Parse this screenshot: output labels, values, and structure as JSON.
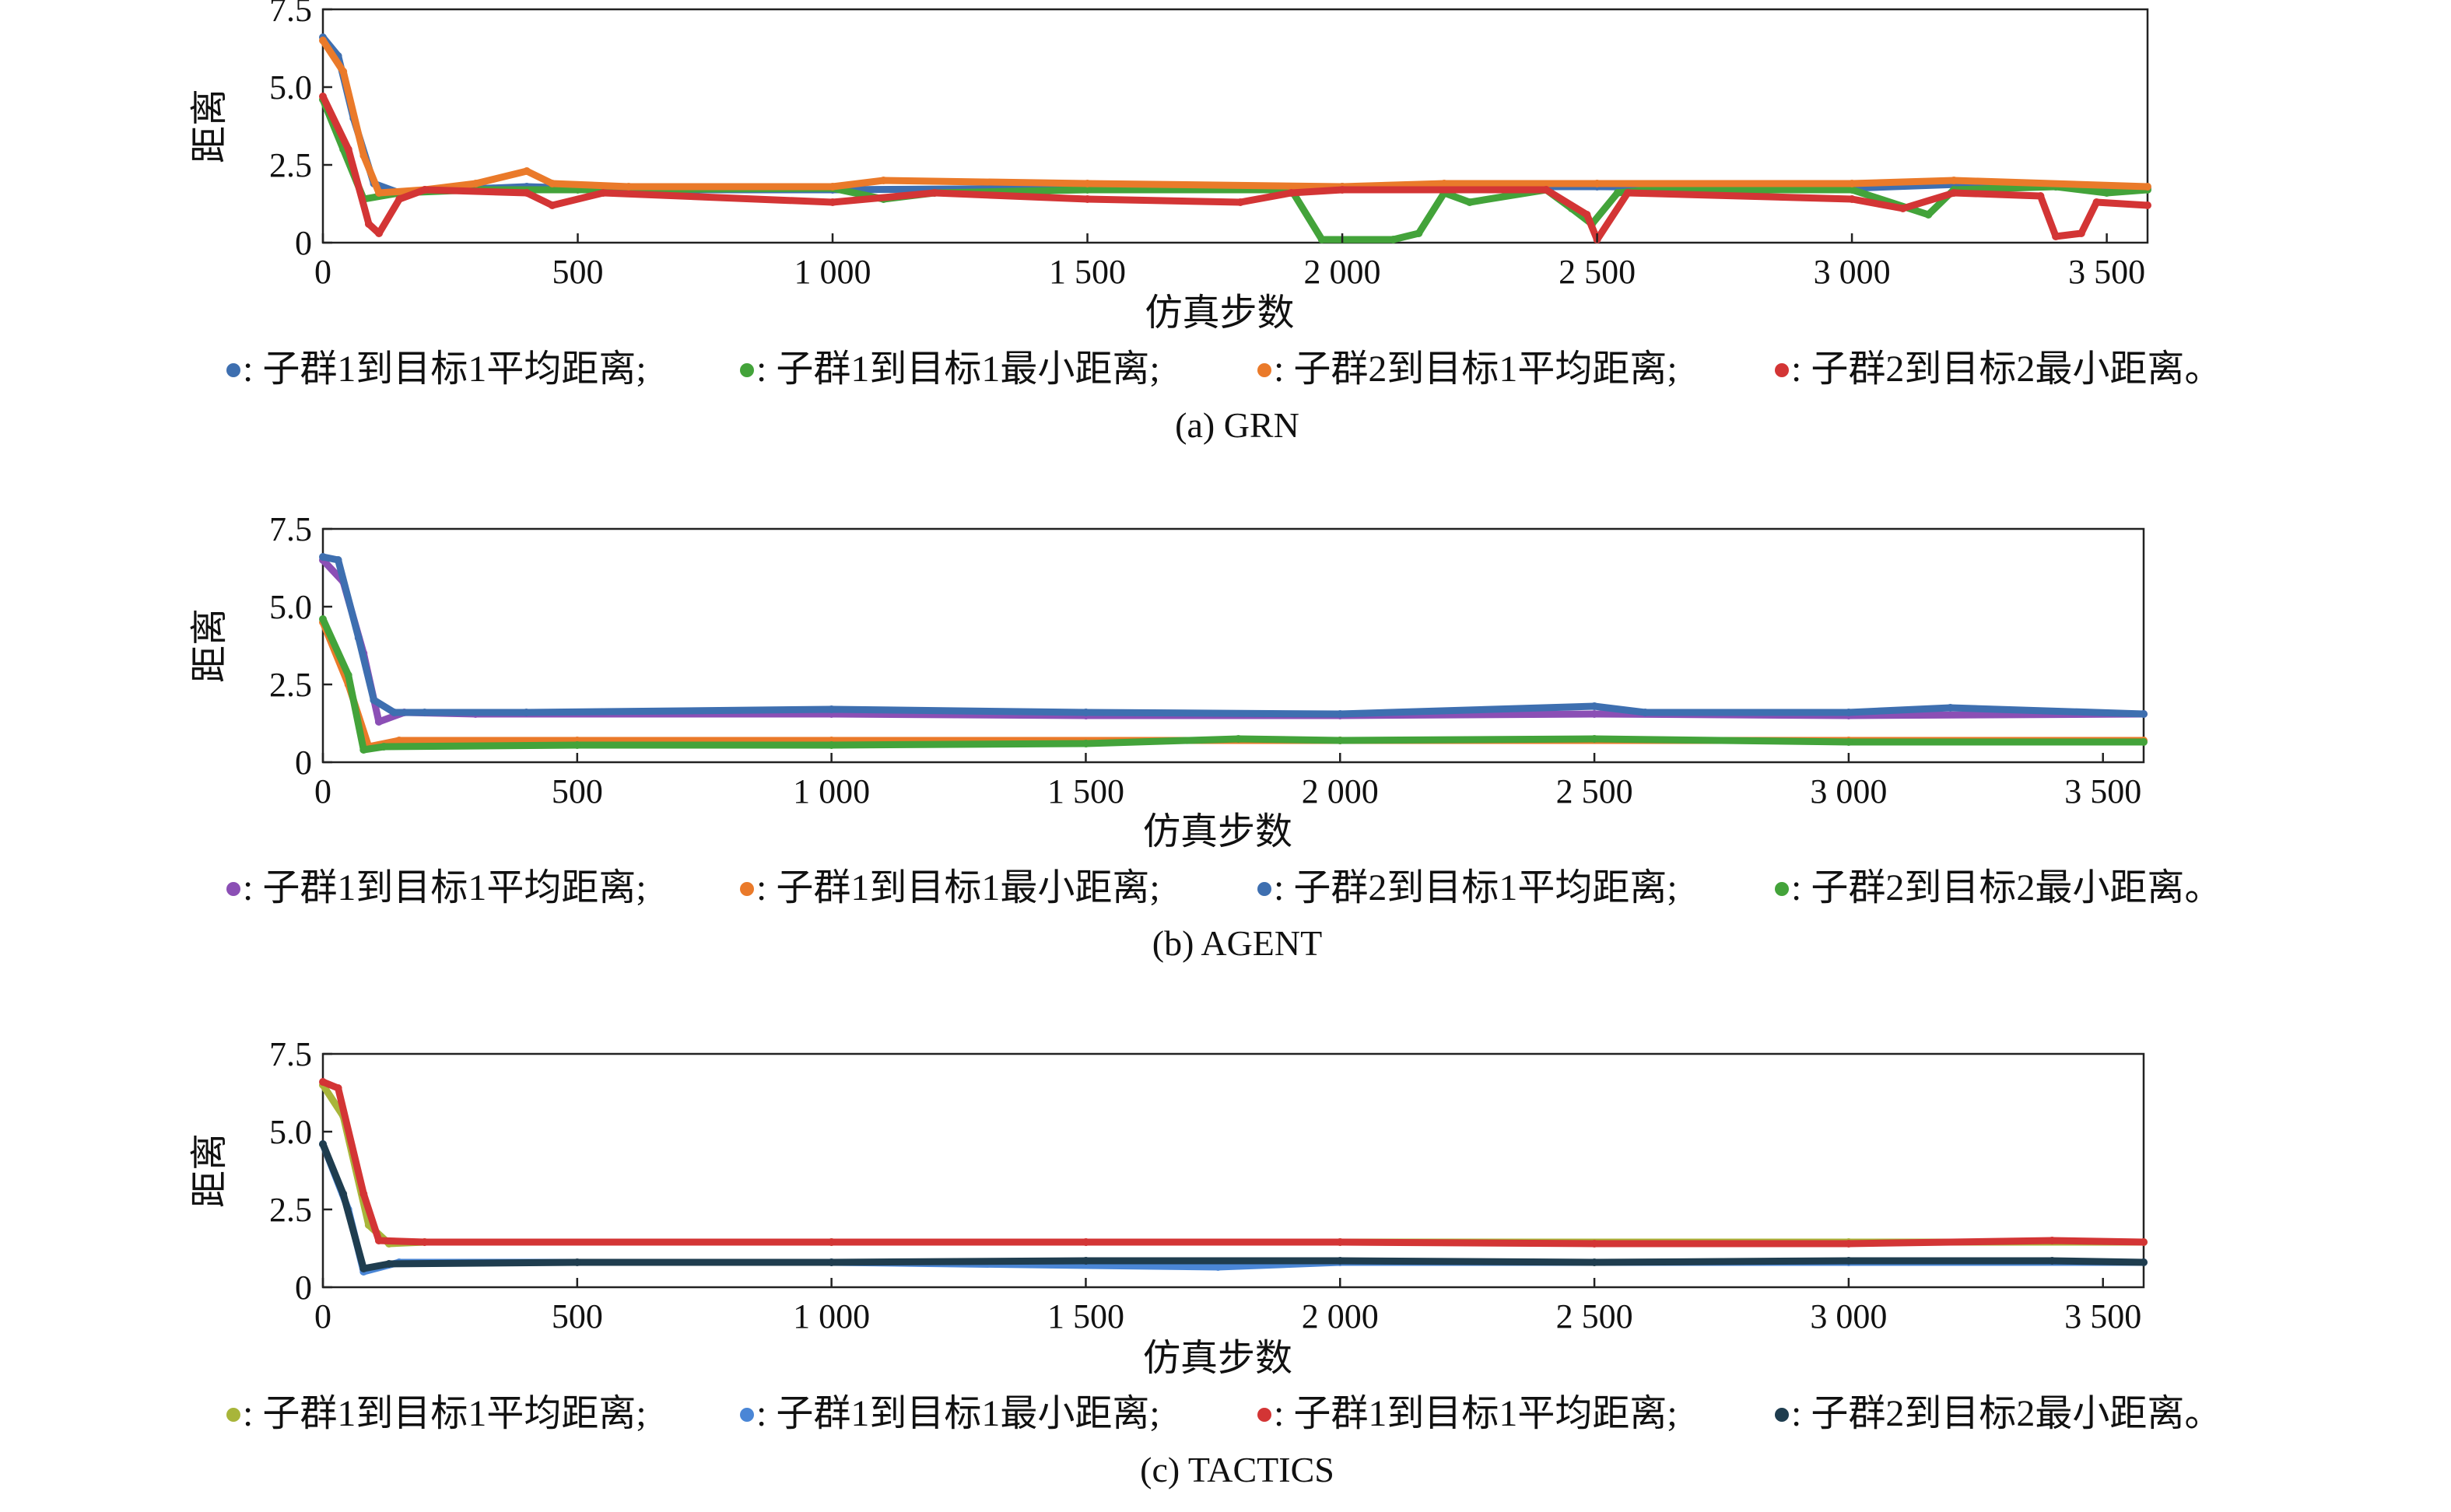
{
  "chart_data": [
    {
      "type": "line",
      "caption": "(a) GRN",
      "xlabel": "仿真步数",
      "ylabel": "距离",
      "xlim": [
        0,
        3580
      ],
      "ylim": [
        0,
        7.5
      ],
      "xticks": [
        0,
        500,
        1000,
        1500,
        2000,
        2500,
        3000,
        3500
      ],
      "xtick_labels": [
        "0",
        "500",
        "1 000",
        "1 500",
        "2 000",
        "2 500",
        "3 000",
        "3 500"
      ],
      "yticks": [
        0,
        2.5,
        5.0,
        7.5
      ],
      "ytick_labels": [
        "0",
        "2.5",
        "5.0",
        "7.5"
      ],
      "grid": false,
      "legend_position": "bottom",
      "series": [
        {
          "name": ": 子群1到目标1平均距离;",
          "color": "#3e6fb0",
          "points": [
            [
              0,
              6.6
            ],
            [
              30,
              6.0
            ],
            [
              60,
              4.0
            ],
            [
              100,
              1.9
            ],
            [
              150,
              1.6
            ],
            [
              250,
              1.7
            ],
            [
              400,
              1.8
            ],
            [
              600,
              1.7
            ],
            [
              1000,
              1.7
            ],
            [
              1500,
              1.75
            ],
            [
              2000,
              1.8
            ],
            [
              2500,
              1.8
            ],
            [
              3000,
              1.75
            ],
            [
              3250,
              1.9
            ],
            [
              3400,
              1.8
            ],
            [
              3580,
              1.75
            ]
          ]
        },
        {
          "name": ": 子群1到目标1最小距离;",
          "color": "#43a33a",
          "points": [
            [
              0,
              4.6
            ],
            [
              40,
              3.0
            ],
            [
              80,
              1.4
            ],
            [
              150,
              1.6
            ],
            [
              300,
              1.7
            ],
            [
              500,
              1.7
            ],
            [
              1000,
              1.75
            ],
            [
              1100,
              1.4
            ],
            [
              1200,
              1.6
            ],
            [
              1500,
              1.7
            ],
            [
              1900,
              1.7
            ],
            [
              1960,
              0.1
            ],
            [
              2100,
              0.1
            ],
            [
              2150,
              0.3
            ],
            [
              2200,
              1.6
            ],
            [
              2250,
              1.3
            ],
            [
              2400,
              1.7
            ],
            [
              2450,
              1.1
            ],
            [
              2490,
              0.6
            ],
            [
              2540,
              1.6
            ],
            [
              2600,
              1.7
            ],
            [
              3000,
              1.7
            ],
            [
              3150,
              0.9
            ],
            [
              3200,
              1.7
            ],
            [
              3400,
              1.8
            ],
            [
              3500,
              1.6
            ],
            [
              3580,
              1.7
            ]
          ]
        },
        {
          "name": ": 子群2到目标1平均距离;",
          "color": "#ea7a2a",
          "points": [
            [
              0,
              6.5
            ],
            [
              40,
              5.5
            ],
            [
              80,
              2.8
            ],
            [
              110,
              1.6
            ],
            [
              200,
              1.7
            ],
            [
              300,
              1.9
            ],
            [
              400,
              2.3
            ],
            [
              450,
              1.9
            ],
            [
              600,
              1.8
            ],
            [
              1000,
              1.8
            ],
            [
              1100,
              2.0
            ],
            [
              1500,
              1.9
            ],
            [
              2000,
              1.8
            ],
            [
              2200,
              1.9
            ],
            [
              2500,
              1.9
            ],
            [
              3000,
              1.9
            ],
            [
              3200,
              2.0
            ],
            [
              3580,
              1.8
            ]
          ]
        },
        {
          "name": ": 子群2到目标2最小距离。",
          "color": "#d33535",
          "points": [
            [
              0,
              4.7
            ],
            [
              50,
              3.0
            ],
            [
              90,
              0.6
            ],
            [
              110,
              0.3
            ],
            [
              150,
              1.4
            ],
            [
              200,
              1.7
            ],
            [
              400,
              1.6
            ],
            [
              450,
              1.2
            ],
            [
              550,
              1.6
            ],
            [
              1000,
              1.3
            ],
            [
              1200,
              1.6
            ],
            [
              1500,
              1.4
            ],
            [
              1800,
              1.3
            ],
            [
              1900,
              1.6
            ],
            [
              2000,
              1.7
            ],
            [
              2400,
              1.7
            ],
            [
              2480,
              0.9
            ],
            [
              2500,
              0.1
            ],
            [
              2560,
              1.6
            ],
            [
              3000,
              1.4
            ],
            [
              3100,
              1.1
            ],
            [
              3200,
              1.6
            ],
            [
              3370,
              1.5
            ],
            [
              3400,
              0.2
            ],
            [
              3450,
              0.3
            ],
            [
              3480,
              1.3
            ],
            [
              3580,
              1.2
            ]
          ]
        }
      ]
    },
    {
      "type": "line",
      "caption": "(b) AGENT",
      "xlabel": "仿真步数",
      "ylabel": "距离",
      "xlim": [
        0,
        3580
      ],
      "ylim": [
        0,
        7.5
      ],
      "xticks": [
        0,
        500,
        1000,
        1500,
        2000,
        2500,
        3000,
        3500
      ],
      "xtick_labels": [
        "0",
        "500",
        "1 000",
        "1 500",
        "2 000",
        "2 500",
        "3 000",
        "3 500"
      ],
      "yticks": [
        0,
        2.5,
        5.0,
        7.5
      ],
      "ytick_labels": [
        "0",
        "2.5",
        "5.0",
        "7.5"
      ],
      "grid": false,
      "legend_position": "bottom",
      "series": [
        {
          "name": ": 子群1到目标1平均距离;",
          "color": "#8b4fb5",
          "points": [
            [
              0,
              6.5
            ],
            [
              40,
              5.8
            ],
            [
              80,
              3.5
            ],
            [
              110,
              1.3
            ],
            [
              160,
              1.6
            ],
            [
              300,
              1.55
            ],
            [
              1000,
              1.55
            ],
            [
              1500,
              1.5
            ],
            [
              2000,
              1.5
            ],
            [
              2500,
              1.55
            ],
            [
              3000,
              1.5
            ],
            [
              3580,
              1.55
            ]
          ]
        },
        {
          "name": ": 子群1到目标1最小距离;",
          "color": "#ea7a2a",
          "points": [
            [
              0,
              4.5
            ],
            [
              50,
              2.5
            ],
            [
              90,
              0.5
            ],
            [
              150,
              0.7
            ],
            [
              500,
              0.7
            ],
            [
              1000,
              0.7
            ],
            [
              2000,
              0.7
            ],
            [
              3000,
              0.7
            ],
            [
              3580,
              0.7
            ]
          ]
        },
        {
          "name": ": 子群2到目标1平均距离;",
          "color": "#3e6fb0",
          "points": [
            [
              0,
              6.6
            ],
            [
              30,
              6.5
            ],
            [
              70,
              4.0
            ],
            [
              100,
              2.0
            ],
            [
              140,
              1.6
            ],
            [
              200,
              1.6
            ],
            [
              400,
              1.6
            ],
            [
              1000,
              1.7
            ],
            [
              1500,
              1.6
            ],
            [
              2000,
              1.55
            ],
            [
              2500,
              1.8
            ],
            [
              2600,
              1.6
            ],
            [
              3000,
              1.6
            ],
            [
              3200,
              1.75
            ],
            [
              3580,
              1.55
            ]
          ]
        },
        {
          "name": ": 子群2到目标2最小距离。",
          "color": "#43a33a",
          "points": [
            [
              0,
              4.6
            ],
            [
              50,
              2.8
            ],
            [
              80,
              0.4
            ],
            [
              120,
              0.5
            ],
            [
              500,
              0.55
            ],
            [
              1000,
              0.55
            ],
            [
              1500,
              0.6
            ],
            [
              1800,
              0.75
            ],
            [
              2000,
              0.7
            ],
            [
              2500,
              0.75
            ],
            [
              3000,
              0.65
            ],
            [
              3580,
              0.65
            ]
          ]
        }
      ]
    },
    {
      "type": "line",
      "caption": "(c) TACTICS",
      "xlabel": "仿真步数",
      "ylabel": "距离",
      "xlim": [
        0,
        3580
      ],
      "ylim": [
        0,
        7.5
      ],
      "xticks": [
        0,
        500,
        1000,
        1500,
        2000,
        2500,
        3000,
        3500
      ],
      "xtick_labels": [
        "0",
        "500",
        "1 000",
        "1 500",
        "2 000",
        "2 500",
        "3 000",
        "3 500"
      ],
      "yticks": [
        0,
        2.5,
        5.0,
        7.5
      ],
      "ytick_labels": [
        "0",
        "2.5",
        "5.0",
        "7.5"
      ],
      "grid": false,
      "legend_position": "bottom",
      "series": [
        {
          "name": ": 子群1到目标1平均距离;",
          "color": "#a8b53a",
          "points": [
            [
              0,
              6.5
            ],
            [
              40,
              5.5
            ],
            [
              90,
              2.0
            ],
            [
              130,
              1.4
            ],
            [
              200,
              1.45
            ],
            [
              1000,
              1.45
            ],
            [
              2000,
              1.45
            ],
            [
              3000,
              1.45
            ],
            [
              3580,
              1.45
            ]
          ]
        },
        {
          "name": ": 子群1到目标1最小距离;",
          "color": "#4a86d6",
          "points": [
            [
              0,
              4.6
            ],
            [
              50,
              2.5
            ],
            [
              80,
              0.5
            ],
            [
              150,
              0.8
            ],
            [
              1000,
              0.8
            ],
            [
              1760,
              0.65
            ],
            [
              2000,
              0.8
            ],
            [
              3000,
              0.8
            ],
            [
              3580,
              0.8
            ]
          ]
        },
        {
          "name": ": 子群1到目标1平均距离;",
          "color": "#d33535",
          "points": [
            [
              0,
              6.6
            ],
            [
              30,
              6.4
            ],
            [
              80,
              3.0
            ],
            [
              110,
              1.5
            ],
            [
              200,
              1.45
            ],
            [
              1000,
              1.45
            ],
            [
              1500,
              1.45
            ],
            [
              2000,
              1.45
            ],
            [
              2500,
              1.4
            ],
            [
              3000,
              1.4
            ],
            [
              3400,
              1.5
            ],
            [
              3580,
              1.45
            ]
          ]
        },
        {
          "name": ": 子群2到目标2最小距离。",
          "color": "#1f3d4f",
          "points": [
            [
              0,
              4.6
            ],
            [
              40,
              3.0
            ],
            [
              80,
              0.6
            ],
            [
              130,
              0.75
            ],
            [
              500,
              0.8
            ],
            [
              1000,
              0.8
            ],
            [
              1500,
              0.85
            ],
            [
              2000,
              0.85
            ],
            [
              2500,
              0.8
            ],
            [
              3000,
              0.85
            ],
            [
              3400,
              0.85
            ],
            [
              3580,
              0.8
            ]
          ]
        }
      ]
    }
  ]
}
